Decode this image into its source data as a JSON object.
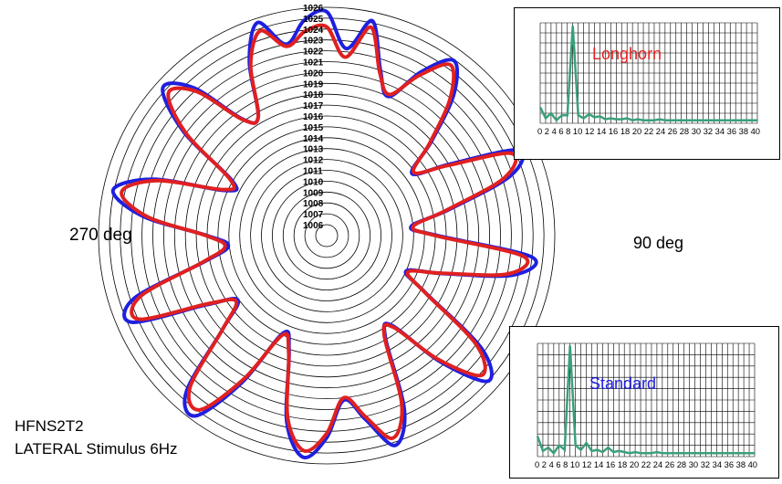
{
  "caption": {
    "line1": "HFNS2T2",
    "line2": "LATERAL Stimulus 6Hz"
  },
  "angle_labels": {
    "left": "270 deg",
    "right": "90 deg"
  },
  "colors": {
    "standard": "#1f1fe0",
    "longhorn": "#e02020",
    "spectrum": "#3aa07a",
    "rings": "#000000"
  },
  "chart_data": [
    {
      "type": "polar-line",
      "radial_ticks": [
        1006,
        1007,
        1008,
        1009,
        1010,
        1011,
        1012,
        1013,
        1014,
        1015,
        1016,
        1017,
        1018,
        1019,
        1020,
        1021,
        1022,
        1023,
        1024,
        1025,
        1026
      ],
      "rlim": [
        1006,
        1026
      ],
      "angle_unit": "deg",
      "series": [
        {
          "color": "#1f1fe0",
          "points": [
            [
              0,
              1025.6
            ],
            [
              6,
              1022.3
            ],
            [
              12,
              1025.2
            ],
            [
              18,
              1021.0
            ],
            [
              24,
              1019.0
            ],
            [
              30,
              1022.4
            ],
            [
              36,
              1024.9
            ],
            [
              42,
              1022.5
            ],
            [
              48,
              1018.0
            ],
            [
              54,
              1014.7
            ],
            [
              60,
              1018.2
            ],
            [
              66,
              1024.3
            ],
            [
              72,
              1022.8
            ],
            [
              78,
              1016.5
            ],
            [
              84,
              1012.8
            ],
            [
              90,
              1015.2
            ],
            [
              96,
              1024.0
            ],
            [
              102,
              1022.5
            ],
            [
              108,
              1016.3
            ],
            [
              114,
              1013.0
            ],
            [
              120,
              1015.5
            ],
            [
              126,
              1022.6
            ],
            [
              132,
              1025.0
            ],
            [
              138,
              1020.6
            ],
            [
              144,
              1015.2
            ],
            [
              150,
              1015.8
            ],
            [
              156,
              1022.6
            ],
            [
              162,
              1025.3
            ],
            [
              168,
              1022.3
            ],
            [
              174,
              1020.2
            ],
            [
              180,
              1023.6
            ],
            [
              186,
              1025.5
            ],
            [
              192,
              1022.6
            ],
            [
              198,
              1016.2
            ],
            [
              204,
              1014.8
            ],
            [
              210,
              1020.6
            ],
            [
              216,
              1025.5
            ],
            [
              222,
              1024.3
            ],
            [
              228,
              1017.9
            ],
            [
              234,
              1015.1
            ],
            [
              240,
              1017.7
            ],
            [
              246,
              1024.6
            ],
            [
              252,
              1023.6
            ],
            [
              258,
              1016.5
            ],
            [
              264,
              1014.1
            ],
            [
              270,
              1016.0
            ],
            [
              276,
              1022.0
            ],
            [
              282,
              1025.1
            ],
            [
              288,
              1021.8
            ],
            [
              294,
              1015.2
            ],
            [
              300,
              1015.0
            ],
            [
              306,
              1021.3
            ],
            [
              312,
              1025.3
            ],
            [
              318,
              1023.3
            ],
            [
              324,
              1018.3
            ],
            [
              330,
              1017.6
            ],
            [
              336,
              1022.5
            ],
            [
              342,
              1025.6
            ],
            [
              348,
              1023.0
            ],
            [
              354,
              1024.9
            ]
          ]
        },
        {
          "color": "#e02020",
          "points": [
            [
              0,
              1024.2
            ],
            [
              6,
              1021.5
            ],
            [
              12,
              1024.6
            ],
            [
              18,
              1020.8
            ],
            [
              24,
              1019.2
            ],
            [
              30,
              1022.0
            ],
            [
              36,
              1024.4
            ],
            [
              42,
              1022.0
            ],
            [
              48,
              1017.8
            ],
            [
              54,
              1014.9
            ],
            [
              60,
              1017.9
            ],
            [
              66,
              1023.6
            ],
            [
              72,
              1022.2
            ],
            [
              78,
              1016.3
            ],
            [
              84,
              1013.0
            ],
            [
              90,
              1015.0
            ],
            [
              96,
              1023.2
            ],
            [
              102,
              1022.0
            ],
            [
              108,
              1016.2
            ],
            [
              114,
              1013.2
            ],
            [
              120,
              1015.4
            ],
            [
              126,
              1022.0
            ],
            [
              132,
              1024.2
            ],
            [
              138,
              1020.3
            ],
            [
              144,
              1015.4
            ],
            [
              150,
              1015.6
            ],
            [
              156,
              1022.0
            ],
            [
              162,
              1024.6
            ],
            [
              168,
              1022.0
            ],
            [
              174,
              1020.0
            ],
            [
              180,
              1023.2
            ],
            [
              186,
              1024.9
            ],
            [
              192,
              1022.2
            ],
            [
              198,
              1016.3
            ],
            [
              204,
              1015.0
            ],
            [
              210,
              1020.2
            ],
            [
              216,
              1024.8
            ],
            [
              222,
              1023.8
            ],
            [
              228,
              1017.9
            ],
            [
              234,
              1015.3
            ],
            [
              240,
              1017.5
            ],
            [
              246,
              1023.9
            ],
            [
              252,
              1023.0
            ],
            [
              258,
              1016.6
            ],
            [
              264,
              1014.4
            ],
            [
              270,
              1016.1
            ],
            [
              276,
              1021.6
            ],
            [
              282,
              1024.3
            ],
            [
              288,
              1021.4
            ],
            [
              294,
              1015.4
            ],
            [
              300,
              1015.2
            ],
            [
              306,
              1021.0
            ],
            [
              312,
              1024.6
            ],
            [
              318,
              1022.8
            ],
            [
              324,
              1018.2
            ],
            [
              330,
              1017.6
            ],
            [
              336,
              1022.2
            ],
            [
              342,
              1024.8
            ],
            [
              348,
              1022.8
            ],
            [
              354,
              1023.9
            ]
          ]
        }
      ]
    },
    {
      "type": "line",
      "label": "Longhorn",
      "label_color": "#e02020",
      "x_ticks": [
        0,
        2,
        4,
        6,
        8,
        10,
        12,
        14,
        16,
        18,
        20,
        22,
        24,
        26,
        28,
        30,
        32,
        34,
        36,
        38,
        40
      ],
      "x_tick_text": "0 2 4 6 8 10 12 14 16 18 20 22 24 26 28 30 32 34 36 38 40",
      "xlim": [
        0,
        40
      ],
      "ylim": [
        0,
        1
      ],
      "grid": true,
      "x": [
        0,
        1,
        2,
        3,
        4,
        5,
        6,
        7,
        8,
        9,
        10,
        11,
        12,
        13,
        14,
        15,
        16,
        17,
        18,
        19,
        20,
        21,
        22,
        23,
        24,
        25,
        26,
        27,
        28,
        29,
        30,
        31,
        32,
        33,
        34,
        35,
        36,
        37,
        38,
        39,
        40
      ],
      "values": [
        0.16,
        0.05,
        0.1,
        0.03,
        0.08,
        0.08,
        0.97,
        0.08,
        0.05,
        0.09,
        0.06,
        0.07,
        0.04,
        0.05,
        0.04,
        0.04,
        0.05,
        0.03,
        0.04,
        0.03,
        0.03,
        0.03,
        0.04,
        0.03,
        0.03,
        0.03,
        0.03,
        0.03,
        0.03,
        0.03,
        0.03,
        0.03,
        0.03,
        0.03,
        0.03,
        0.03,
        0.03,
        0.03,
        0.03,
        0.03,
        0.03
      ]
    },
    {
      "type": "line",
      "label": "Standard",
      "label_color": "#1f1fe0",
      "x_ticks": [
        0,
        2,
        4,
        6,
        8,
        10,
        12,
        14,
        16,
        18,
        20,
        22,
        24,
        26,
        28,
        30,
        32,
        34,
        36,
        38,
        40
      ],
      "x_tick_text": "0 2 4 6 8 10 12 14 16 18 20 22 24 26 28 30 32 34 36 38 40",
      "xlim": [
        0,
        40
      ],
      "ylim": [
        0,
        1
      ],
      "grid": true,
      "x": [
        0,
        1,
        2,
        3,
        4,
        5,
        6,
        7,
        8,
        9,
        10,
        11,
        12,
        13,
        14,
        15,
        16,
        17,
        18,
        19,
        20,
        21,
        22,
        23,
        24,
        25,
        26,
        27,
        28,
        29,
        30,
        31,
        32,
        33,
        34,
        35,
        36,
        37,
        38,
        39,
        40
      ],
      "values": [
        0.18,
        0.05,
        0.08,
        0.03,
        0.1,
        0.06,
        0.98,
        0.1,
        0.06,
        0.12,
        0.05,
        0.06,
        0.04,
        0.08,
        0.04,
        0.05,
        0.04,
        0.03,
        0.04,
        0.03,
        0.03,
        0.03,
        0.04,
        0.03,
        0.03,
        0.03,
        0.03,
        0.03,
        0.03,
        0.03,
        0.03,
        0.03,
        0.03,
        0.03,
        0.03,
        0.03,
        0.03,
        0.03,
        0.03,
        0.03,
        0.03
      ]
    }
  ]
}
